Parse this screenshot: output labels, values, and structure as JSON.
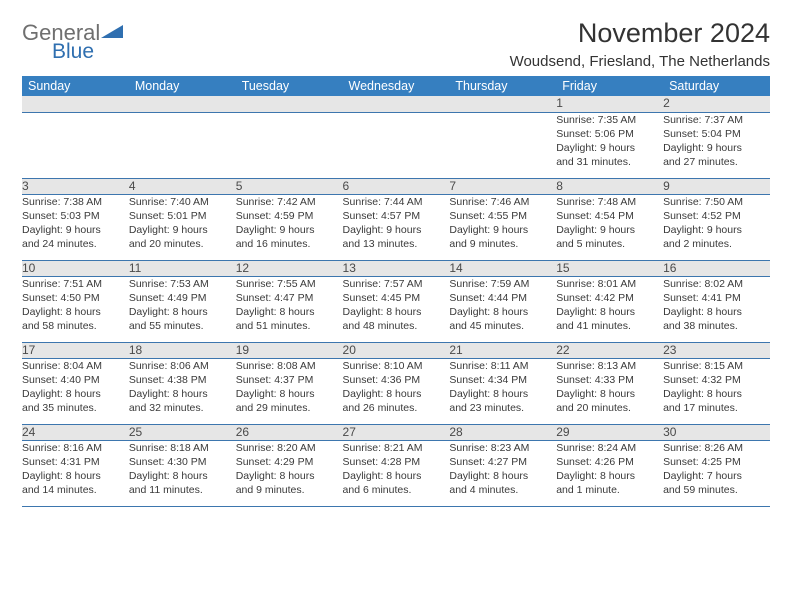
{
  "brand": {
    "word1": "General",
    "word2": "Blue",
    "color1": "#6f6f6f",
    "color2": "#2f6fb0",
    "triangle_color": "#2f6fb0"
  },
  "title": "November 2024",
  "location": "Woudsend, Friesland, The Netherlands",
  "header_bg": "#367fc0",
  "daynum_bg": "#e6e6e6",
  "row_border": "#3d76ae",
  "weekdays": [
    "Sunday",
    "Monday",
    "Tuesday",
    "Wednesday",
    "Thursday",
    "Friday",
    "Saturday"
  ],
  "weeks": [
    [
      null,
      null,
      null,
      null,
      null,
      {
        "n": "1",
        "sr": "Sunrise: 7:35 AM",
        "ss": "Sunset: 5:06 PM",
        "d1": "Daylight: 9 hours",
        "d2": "and 31 minutes."
      },
      {
        "n": "2",
        "sr": "Sunrise: 7:37 AM",
        "ss": "Sunset: 5:04 PM",
        "d1": "Daylight: 9 hours",
        "d2": "and 27 minutes."
      }
    ],
    [
      {
        "n": "3",
        "sr": "Sunrise: 7:38 AM",
        "ss": "Sunset: 5:03 PM",
        "d1": "Daylight: 9 hours",
        "d2": "and 24 minutes."
      },
      {
        "n": "4",
        "sr": "Sunrise: 7:40 AM",
        "ss": "Sunset: 5:01 PM",
        "d1": "Daylight: 9 hours",
        "d2": "and 20 minutes."
      },
      {
        "n": "5",
        "sr": "Sunrise: 7:42 AM",
        "ss": "Sunset: 4:59 PM",
        "d1": "Daylight: 9 hours",
        "d2": "and 16 minutes."
      },
      {
        "n": "6",
        "sr": "Sunrise: 7:44 AM",
        "ss": "Sunset: 4:57 PM",
        "d1": "Daylight: 9 hours",
        "d2": "and 13 minutes."
      },
      {
        "n": "7",
        "sr": "Sunrise: 7:46 AM",
        "ss": "Sunset: 4:55 PM",
        "d1": "Daylight: 9 hours",
        "d2": "and 9 minutes."
      },
      {
        "n": "8",
        "sr": "Sunrise: 7:48 AM",
        "ss": "Sunset: 4:54 PM",
        "d1": "Daylight: 9 hours",
        "d2": "and 5 minutes."
      },
      {
        "n": "9",
        "sr": "Sunrise: 7:50 AM",
        "ss": "Sunset: 4:52 PM",
        "d1": "Daylight: 9 hours",
        "d2": "and 2 minutes."
      }
    ],
    [
      {
        "n": "10",
        "sr": "Sunrise: 7:51 AM",
        "ss": "Sunset: 4:50 PM",
        "d1": "Daylight: 8 hours",
        "d2": "and 58 minutes."
      },
      {
        "n": "11",
        "sr": "Sunrise: 7:53 AM",
        "ss": "Sunset: 4:49 PM",
        "d1": "Daylight: 8 hours",
        "d2": "and 55 minutes."
      },
      {
        "n": "12",
        "sr": "Sunrise: 7:55 AM",
        "ss": "Sunset: 4:47 PM",
        "d1": "Daylight: 8 hours",
        "d2": "and 51 minutes."
      },
      {
        "n": "13",
        "sr": "Sunrise: 7:57 AM",
        "ss": "Sunset: 4:45 PM",
        "d1": "Daylight: 8 hours",
        "d2": "and 48 minutes."
      },
      {
        "n": "14",
        "sr": "Sunrise: 7:59 AM",
        "ss": "Sunset: 4:44 PM",
        "d1": "Daylight: 8 hours",
        "d2": "and 45 minutes."
      },
      {
        "n": "15",
        "sr": "Sunrise: 8:01 AM",
        "ss": "Sunset: 4:42 PM",
        "d1": "Daylight: 8 hours",
        "d2": "and 41 minutes."
      },
      {
        "n": "16",
        "sr": "Sunrise: 8:02 AM",
        "ss": "Sunset: 4:41 PM",
        "d1": "Daylight: 8 hours",
        "d2": "and 38 minutes."
      }
    ],
    [
      {
        "n": "17",
        "sr": "Sunrise: 8:04 AM",
        "ss": "Sunset: 4:40 PM",
        "d1": "Daylight: 8 hours",
        "d2": "and 35 minutes."
      },
      {
        "n": "18",
        "sr": "Sunrise: 8:06 AM",
        "ss": "Sunset: 4:38 PM",
        "d1": "Daylight: 8 hours",
        "d2": "and 32 minutes."
      },
      {
        "n": "19",
        "sr": "Sunrise: 8:08 AM",
        "ss": "Sunset: 4:37 PM",
        "d1": "Daylight: 8 hours",
        "d2": "and 29 minutes."
      },
      {
        "n": "20",
        "sr": "Sunrise: 8:10 AM",
        "ss": "Sunset: 4:36 PM",
        "d1": "Daylight: 8 hours",
        "d2": "and 26 minutes."
      },
      {
        "n": "21",
        "sr": "Sunrise: 8:11 AM",
        "ss": "Sunset: 4:34 PM",
        "d1": "Daylight: 8 hours",
        "d2": "and 23 minutes."
      },
      {
        "n": "22",
        "sr": "Sunrise: 8:13 AM",
        "ss": "Sunset: 4:33 PM",
        "d1": "Daylight: 8 hours",
        "d2": "and 20 minutes."
      },
      {
        "n": "23",
        "sr": "Sunrise: 8:15 AM",
        "ss": "Sunset: 4:32 PM",
        "d1": "Daylight: 8 hours",
        "d2": "and 17 minutes."
      }
    ],
    [
      {
        "n": "24",
        "sr": "Sunrise: 8:16 AM",
        "ss": "Sunset: 4:31 PM",
        "d1": "Daylight: 8 hours",
        "d2": "and 14 minutes."
      },
      {
        "n": "25",
        "sr": "Sunrise: 8:18 AM",
        "ss": "Sunset: 4:30 PM",
        "d1": "Daylight: 8 hours",
        "d2": "and 11 minutes."
      },
      {
        "n": "26",
        "sr": "Sunrise: 8:20 AM",
        "ss": "Sunset: 4:29 PM",
        "d1": "Daylight: 8 hours",
        "d2": "and 9 minutes."
      },
      {
        "n": "27",
        "sr": "Sunrise: 8:21 AM",
        "ss": "Sunset: 4:28 PM",
        "d1": "Daylight: 8 hours",
        "d2": "and 6 minutes."
      },
      {
        "n": "28",
        "sr": "Sunrise: 8:23 AM",
        "ss": "Sunset: 4:27 PM",
        "d1": "Daylight: 8 hours",
        "d2": "and 4 minutes."
      },
      {
        "n": "29",
        "sr": "Sunrise: 8:24 AM",
        "ss": "Sunset: 4:26 PM",
        "d1": "Daylight: 8 hours",
        "d2": "and 1 minute."
      },
      {
        "n": "30",
        "sr": "Sunrise: 8:26 AM",
        "ss": "Sunset: 4:25 PM",
        "d1": "Daylight: 7 hours",
        "d2": "and 59 minutes."
      }
    ]
  ]
}
